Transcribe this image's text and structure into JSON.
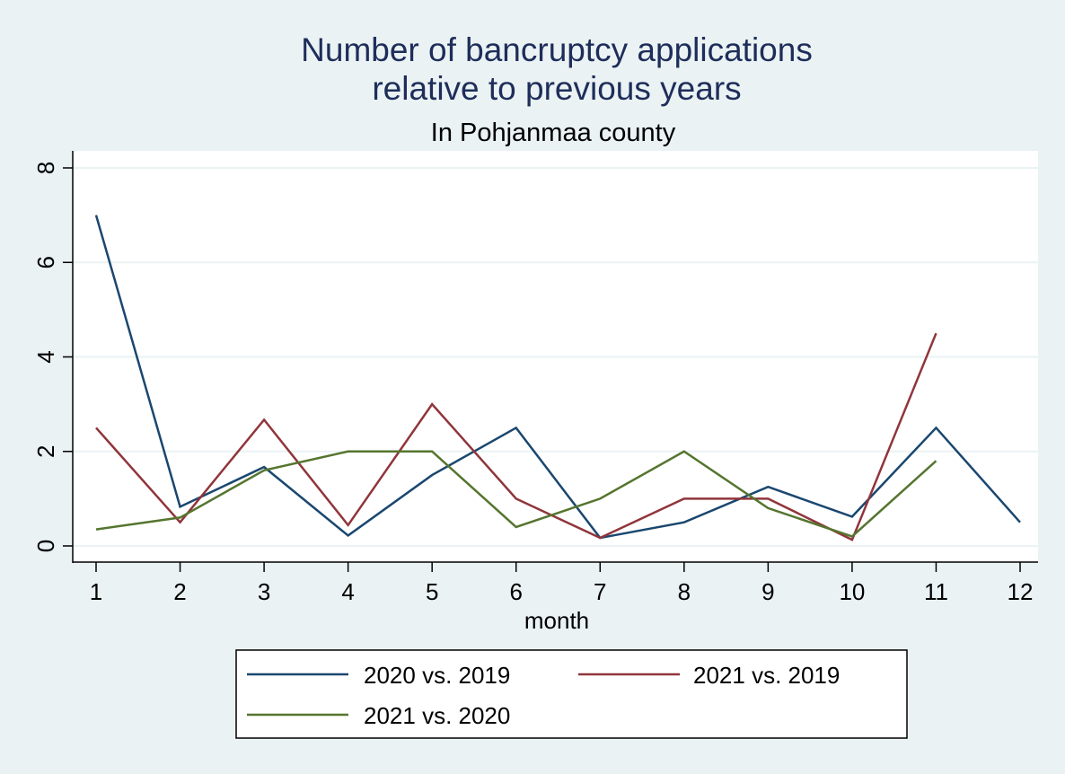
{
  "chart_data": {
    "type": "line",
    "title": "Number of bancruptcy applications",
    "title_line2": "relative to previous years",
    "subtitle": "In Pohjanmaa county",
    "xlabel": "month",
    "ylabel": "",
    "x": [
      1,
      2,
      3,
      4,
      5,
      6,
      7,
      8,
      9,
      10,
      11,
      12
    ],
    "xticks": [
      "1",
      "2",
      "3",
      "4",
      "5",
      "6",
      "7",
      "8",
      "9",
      "10",
      "11",
      "12"
    ],
    "yticks": [
      "0",
      "2",
      "4",
      "6",
      "8"
    ],
    "ylim": [
      0,
      8
    ],
    "xlim": [
      1,
      12
    ],
    "grid": true,
    "legend_position": "bottom",
    "series": [
      {
        "name": "2020 vs. 2019",
        "color": "#1a476f",
        "values": [
          7,
          0.83,
          1.67,
          0.22,
          1.5,
          2.5,
          0.17,
          0.5,
          1.25,
          0.62,
          2.5,
          0.5
        ]
      },
      {
        "name": "2021 vs. 2019",
        "color": "#90353b",
        "values": [
          2.5,
          0.5,
          2.67,
          0.44,
          3,
          1,
          0.17,
          1,
          1,
          0.13,
          4.5,
          null
        ]
      },
      {
        "name": "2021 vs. 2020",
        "color": "#55752f",
        "values": [
          0.35,
          0.6,
          1.6,
          2,
          2,
          0.4,
          1,
          2,
          0.8,
          0.2,
          1.8,
          null
        ]
      }
    ]
  }
}
